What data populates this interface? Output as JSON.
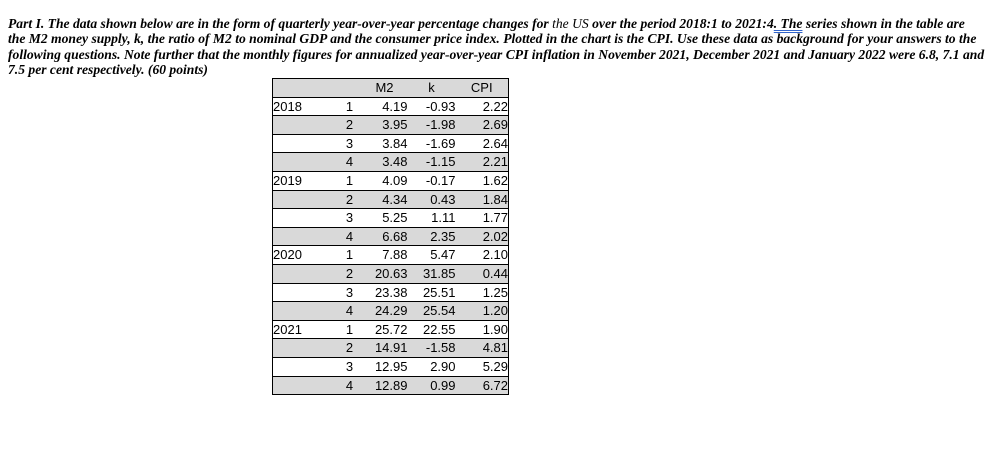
{
  "question": {
    "part_label": "Part I.",
    "text_intro": " The data shown below are in the form of quarterly year-over-year percentage changes for ",
    "us_text": "the US",
    "text_period": " over the period 2018:1 to 2021:4",
    "underlined_text": ". The",
    "text_rest": " series shown in the table are the M2 money supply,  k, the ratio of M2 to nominal GDP and the consumer price index. Plotted in the chart is the CPI. Use these data as background for your answers to the following questions. Note further that the monthly figures for annualized year-over-year CPI inflation in November 2021, December 2021 and January 2022 were 6.8, 7.1 and 7.5 per cent respectively.  (60 points)",
    "underline_color": "#3366cc"
  },
  "table": {
    "headers": {
      "year": "",
      "quarter": "",
      "m2": "M2",
      "k": "k",
      "cpi": "CPI"
    },
    "shaded_row_color": "#d9d9d9",
    "rows": [
      {
        "year": "2018",
        "quarter": "1",
        "m2": "4.19",
        "k": "-0.93",
        "cpi": "2.22"
      },
      {
        "year": "",
        "quarter": "2",
        "m2": "3.95",
        "k": "-1.98",
        "cpi": "2.69"
      },
      {
        "year": "",
        "quarter": "3",
        "m2": "3.84",
        "k": "-1.69",
        "cpi": "2.64"
      },
      {
        "year": "",
        "quarter": "4",
        "m2": "3.48",
        "k": "-1.15",
        "cpi": "2.21"
      },
      {
        "year": "2019",
        "quarter": "1",
        "m2": "4.09",
        "k": "-0.17",
        "cpi": "1.62"
      },
      {
        "year": "",
        "quarter": "2",
        "m2": "4.34",
        "k": "0.43",
        "cpi": "1.84"
      },
      {
        "year": "",
        "quarter": "3",
        "m2": "5.25",
        "k": "1.11",
        "cpi": "1.77"
      },
      {
        "year": "",
        "quarter": "4",
        "m2": "6.68",
        "k": "2.35",
        "cpi": "2.02"
      },
      {
        "year": "2020",
        "quarter": "1",
        "m2": "7.88",
        "k": "5.47",
        "cpi": "2.10"
      },
      {
        "year": "",
        "quarter": "2",
        "m2": "20.63",
        "k": "31.85",
        "cpi": "0.44"
      },
      {
        "year": "",
        "quarter": "3",
        "m2": "23.38",
        "k": "25.51",
        "cpi": "1.25"
      },
      {
        "year": "",
        "quarter": "4",
        "m2": "24.29",
        "k": "25.54",
        "cpi": "1.20"
      },
      {
        "year": "2021",
        "quarter": "1",
        "m2": "25.72",
        "k": "22.55",
        "cpi": "1.90"
      },
      {
        "year": "",
        "quarter": "2",
        "m2": "14.91",
        "k": "-1.58",
        "cpi": "4.81"
      },
      {
        "year": "",
        "quarter": "3",
        "m2": "12.95",
        "k": "2.90",
        "cpi": "5.29"
      },
      {
        "year": "",
        "quarter": "4",
        "m2": "12.89",
        "k": "0.99",
        "cpi": "6.72"
      }
    ]
  }
}
